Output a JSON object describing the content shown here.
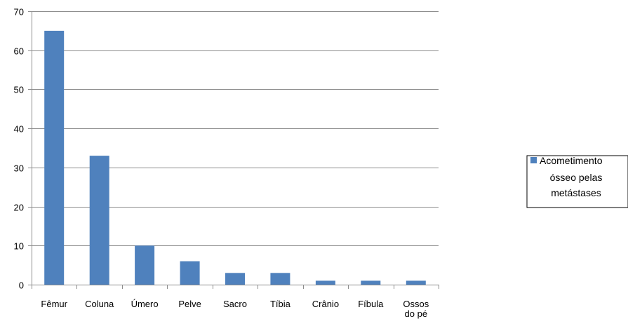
{
  "chart_data": {
    "type": "bar",
    "title": "",
    "xlabel": "",
    "ylabel": "",
    "categories": [
      "Fêmur",
      "Coluna",
      "Úmero",
      "Pelve",
      "Sacro",
      "Tíbia",
      "Crânio",
      "Fíbula",
      "Ossos do pé"
    ],
    "category_lines": [
      [
        "Fêmur"
      ],
      [
        "Coluna"
      ],
      [
        "Úmero"
      ],
      [
        "Pelve"
      ],
      [
        "Sacro"
      ],
      [
        "Tíbia"
      ],
      [
        "Crânio"
      ],
      [
        "Fíbula"
      ],
      [
        "Ossos",
        "do pé"
      ]
    ],
    "series": [
      {
        "name": "Acometimento ósseo pelas metástases",
        "values": [
          65,
          33,
          10,
          6,
          3,
          3,
          1,
          1,
          1
        ],
        "color": "#4f81bd"
      }
    ],
    "ylim": [
      0,
      70
    ],
    "yticks": [
      "0",
      "10",
      "20",
      "30",
      "40",
      "50",
      "60",
      "70"
    ],
    "grid": true,
    "legend_position": "right",
    "legend": {
      "lines": [
        "Acometimento",
        "ósseo pelas",
        "metástases"
      ]
    },
    "colors": {
      "bar": "#4f81bd",
      "grid": "#8c8c8c",
      "axis": "#8c8c8c"
    }
  }
}
